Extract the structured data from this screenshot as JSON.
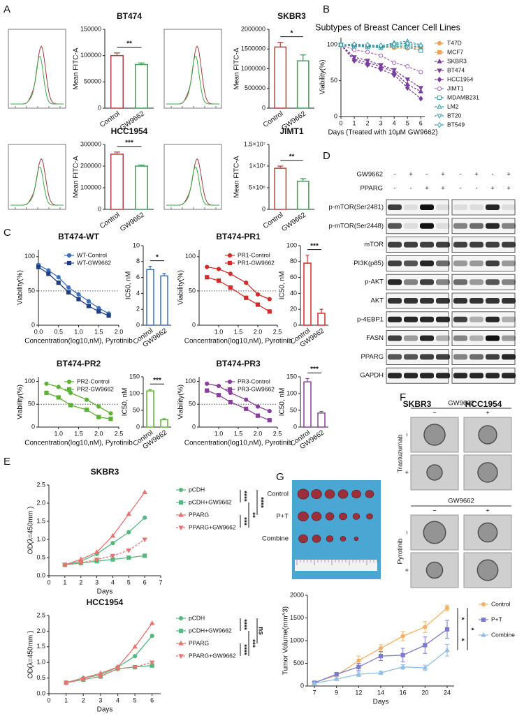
{
  "panels": [
    "A",
    "B",
    "C",
    "D",
    "E",
    "F",
    "G"
  ],
  "chart_data": [
    {
      "type": "bar",
      "title": "BT474",
      "ylabel": "Mean FITC-A",
      "categories": [
        "Control",
        "GW9662"
      ],
      "values": [
        100000,
        83000
      ],
      "errors": [
        5000,
        3000
      ],
      "colors": [
        "#b5403f",
        "#3f9e5a"
      ],
      "ylim": [
        0,
        150000
      ],
      "yticks": [
        0,
        50000,
        100000,
        150000
      ],
      "sig": "**"
    },
    {
      "type": "bar",
      "title": "SKBR3",
      "ylabel": "Mean FITC-A",
      "categories": [
        "Control",
        "GW9662"
      ],
      "values": [
        1550000,
        1200000
      ],
      "errors": [
        120000,
        150000
      ],
      "colors": [
        "#b5403f",
        "#3f9e5a"
      ],
      "ylim": [
        0,
        2000000
      ],
      "yticks": [
        0,
        500000,
        1000000,
        1500000,
        2000000
      ],
      "sig": "*"
    },
    {
      "type": "bar",
      "title": "HCC1954",
      "ylabel": "Mean FITC-A",
      "categories": [
        "Control",
        "GW9662"
      ],
      "values": [
        255000,
        200000
      ],
      "errors": [
        10000,
        5000
      ],
      "colors": [
        "#b5403f",
        "#3f9e5a"
      ],
      "ylim": [
        0,
        300000
      ],
      "yticks": [
        0,
        100000,
        200000,
        300000
      ],
      "sig": "***"
    },
    {
      "type": "bar",
      "title": "JIMT1",
      "ylabel": "Mean FITC-A",
      "categories": [
        "Control",
        "GW9662"
      ],
      "values": [
        9500000,
        6500000
      ],
      "errors": [
        500000,
        600000
      ],
      "colors": [
        "#b5403f",
        "#3f9e5a"
      ],
      "ylim": [
        0,
        15000000
      ],
      "yticks": [
        0,
        {
          "value": 5000000,
          "label": "5×10⁶"
        },
        {
          "value": 10000000,
          "label": "1×10⁷"
        },
        {
          "value": 15000000,
          "label": "1.5×10⁷"
        }
      ],
      "sig": "**"
    },
    {
      "type": "line",
      "title": "Subtypes of Breast Cancer Cell Lines",
      "xlabel": "Days (Treated with 10μM GW9662)",
      "ylabel": "Viability(%)",
      "x": [
        0,
        1,
        2,
        3,
        4,
        5,
        6
      ],
      "xlim": [
        0,
        6.3
      ],
      "xticks": [
        0,
        1,
        2,
        3,
        4,
        5,
        6
      ],
      "ylim": [
        0,
        110
      ],
      "yticks": [
        0,
        50,
        100
      ],
      "series": [
        {
          "name": "T47D",
          "color": "#f0a050",
          "marker": "circle",
          "dash": true,
          "values": [
            100,
            100,
            98,
            97,
            96,
            95,
            96
          ]
        },
        {
          "name": "MCF7",
          "color": "#f0a050",
          "marker": "square",
          "dash": true,
          "values": [
            100,
            99,
            98,
            97,
            97,
            97,
            96
          ]
        },
        {
          "name": "SKBR3",
          "color": "#7b3f9e",
          "marker": "triangle",
          "dash": true,
          "values": [
            100,
            80,
            75,
            70,
            62,
            45,
            35
          ]
        },
        {
          "name": "BT474",
          "color": "#7b3f9e",
          "marker": "triangle-down",
          "dash": true,
          "values": [
            100,
            83,
            78,
            72,
            65,
            52,
            40
          ]
        },
        {
          "name": "HCC1954",
          "color": "#7b3f9e",
          "marker": "diamond",
          "dash": true,
          "values": [
            100,
            78,
            72,
            66,
            58,
            40,
            25
          ]
        },
        {
          "name": "JIMT1",
          "color": "#a36cc0",
          "marker": "circle-open",
          "dash": true,
          "values": [
            100,
            93,
            90,
            85,
            75,
            70,
            62
          ]
        },
        {
          "name": "MDAMB231",
          "color": "#3a9aa8",
          "marker": "square-open",
          "dash": true,
          "values": [
            100,
            98,
            97,
            96,
            98,
            97,
            92
          ]
        },
        {
          "name": "LM2",
          "color": "#3a9aa8",
          "marker": "triangle-open",
          "dash": true,
          "values": [
            100,
            100,
            99,
            98,
            103,
            105,
            100
          ]
        },
        {
          "name": "BT20",
          "color": "#3a9aa8",
          "marker": "triangle-down-open",
          "dash": true,
          "values": [
            100,
            99,
            98,
            97,
            100,
            99,
            97
          ]
        },
        {
          "name": "BT549",
          "color": "#3a9aa8",
          "marker": "diamond-open",
          "dash": true,
          "values": [
            100,
            101,
            100,
            99,
            101,
            102,
            99
          ]
        }
      ]
    },
    {
      "type": "line",
      "title": "BT474-WT",
      "xlabel": "Concentration(log10,nM), Pyrotinib",
      "ylabel": "Viability(%)",
      "x": [
        0,
        0.25,
        0.5,
        0.75,
        1,
        1.25,
        1.5,
        1.75
      ],
      "xlim": [
        0,
        2
      ],
      "xticks": [
        {
          "value": 0,
          "label": "0.0"
        },
        0.5,
        {
          "value": 1,
          "label": "1.0"
        },
        1.5,
        {
          "value": 2,
          "label": "2.0"
        }
      ],
      "ylim": [
        0,
        110
      ],
      "yticks": [
        0,
        50,
        100
      ],
      "hline": 50,
      "series": [
        {
          "name": "WT-Control",
          "color": "#3a6fc0",
          "marker": "circle",
          "values": [
            88,
            80,
            70,
            55,
            45,
            35,
            25,
            17
          ]
        },
        {
          "name": "WT-GW9662",
          "color": "#1f3f80",
          "marker": "square",
          "values": [
            85,
            75,
            62,
            48,
            38,
            28,
            20,
            14
          ]
        }
      ]
    },
    {
      "type": "bar",
      "ylabel": "IC50, nM",
      "categories": [
        "Control",
        "GW9662"
      ],
      "values": [
        7,
        6.2
      ],
      "errors": [
        0.4,
        0.3
      ],
      "colors": [
        "#3a6fc0",
        "#3a6fc0"
      ],
      "ylim": [
        0,
        10
      ],
      "yticks": [
        0,
        2,
        4,
        6,
        8,
        10
      ],
      "sig": "*"
    },
    {
      "type": "line",
      "title": "BT474-PR1",
      "xlabel": "Concentration(log10,nM), Pyrotinib",
      "ylabel": "Viability(%)",
      "x": [
        0.7,
        1.0,
        1.3,
        1.7,
        2.0,
        2.3
      ],
      "xlim": [
        0.5,
        2.5
      ],
      "xticks": [
        {
          "value": 1,
          "label": "1.0"
        },
        1.5,
        {
          "value": 2,
          "label": "2.0"
        },
        2.5
      ],
      "ylim": [
        0,
        110
      ],
      "yticks": [
        0,
        50,
        100
      ],
      "hline": 50,
      "series": [
        {
          "name": "PR1-Control",
          "color": "#d42a2a",
          "marker": "circle",
          "values": [
            85,
            82,
            75,
            62,
            45,
            38
          ]
        },
        {
          "name": "PR1-GW9662",
          "color": "#d42a2a",
          "marker": "square",
          "values": [
            70,
            65,
            55,
            40,
            30,
            20
          ]
        }
      ]
    },
    {
      "type": "bar",
      "ylabel": "IC50, nM",
      "categories": [
        "Control",
        "GW9662"
      ],
      "values": [
        78,
        15
      ],
      "errors": [
        10,
        5
      ],
      "colors": [
        "#d42a2a",
        "#d42a2a"
      ],
      "ylim": [
        0,
        100
      ],
      "yticks": [
        0,
        20,
        40,
        60,
        80,
        100
      ],
      "sig": "***"
    },
    {
      "type": "line",
      "title": "BT474-PR2",
      "xlabel": "Concentration(log10,nM), Pyrotinib",
      "ylabel": "Viability(%)",
      "x": [
        0.7,
        1.0,
        1.3,
        1.7,
        2.0,
        2.3
      ],
      "xlim": [
        0.5,
        2.5
      ],
      "xticks": [
        {
          "value": 1,
          "label": "1.0"
        },
        1.5,
        {
          "value": 2,
          "label": "2.0"
        },
        2.5
      ],
      "ylim": [
        0,
        110
      ],
      "yticks": [
        0,
        50,
        100
      ],
      "hline": 50,
      "series": [
        {
          "name": "PR2-Control",
          "color": "#5db234",
          "marker": "circle",
          "values": [
            95,
            88,
            75,
            60,
            45,
            30
          ]
        },
        {
          "name": "PR2-GW9662",
          "color": "#5db234",
          "marker": "square",
          "values": [
            75,
            65,
            48,
            38,
            22,
            18
          ]
        }
      ]
    },
    {
      "type": "bar",
      "ylabel": "IC50, nM",
      "categories": [
        "Control",
        "GW9662"
      ],
      "values": [
        108,
        22
      ],
      "errors": [
        4,
        3
      ],
      "colors": [
        "#5db234",
        "#5db234"
      ],
      "ylim": [
        0,
        150
      ],
      "yticks": [
        0,
        50,
        100,
        150
      ],
      "sig": "***"
    },
    {
      "type": "line",
      "title": "BT474-PR3",
      "xlabel": "Concentration(log10,nM), Pyrotinib",
      "ylabel": "Viability(%)",
      "x": [
        0.7,
        1.0,
        1.3,
        1.7,
        2.0,
        2.3
      ],
      "xlim": [
        0.5,
        2.5
      ],
      "xticks": [
        {
          "value": 1,
          "label": "1.0"
        },
        1.5,
        {
          "value": 2,
          "label": "2.0"
        },
        2.5
      ],
      "ylim": [
        0,
        110
      ],
      "yticks": [
        0,
        50,
        100
      ],
      "hline": 50,
      "series": [
        {
          "name": "PR3-Control",
          "color": "#8a3f9e",
          "marker": "circle",
          "values": [
            95,
            90,
            75,
            60,
            45,
            35
          ]
        },
        {
          "name": "PR3-GW9662",
          "color": "#8a3f9e",
          "marker": "square",
          "values": [
            80,
            70,
            55,
            40,
            25,
            15
          ]
        }
      ]
    },
    {
      "type": "bar",
      "ylabel": "IC50, nM",
      "categories": [
        "Control",
        "GW9662"
      ],
      "values": [
        135,
        42
      ],
      "errors": [
        10,
        5
      ],
      "colors": [
        "#8a3f9e",
        "#8a3f9e"
      ],
      "ylim": [
        0,
        150
      ],
      "yticks": [
        0,
        50,
        100,
        150
      ],
      "sig": "***"
    },
    {
      "type": "line",
      "title": "SKBR3",
      "xlabel": "Days",
      "ylabel": "OD(λ=450mm )",
      "x": [
        1,
        2,
        3,
        4,
        5,
        6
      ],
      "xlim": [
        0,
        7
      ],
      "xticks": [
        0,
        1,
        2,
        3,
        4,
        5,
        6,
        7
      ],
      "ylim": [
        0,
        2.5
      ],
      "yticks": [
        {
          "value": 0,
          "label": "0.0"
        },
        0.5,
        {
          "value": 1,
          "label": "1.0"
        },
        1.5,
        {
          "value": 2,
          "label": "2.0"
        },
        2.5
      ],
      "series": [
        {
          "name": "pCDH",
          "color": "#55b87e",
          "marker": "circle",
          "values": [
            0.3,
            0.4,
            0.6,
            0.9,
            1.2,
            1.6
          ]
        },
        {
          "name": "pCDH+GW9662",
          "color": "#55b87e",
          "marker": "square",
          "values": [
            0.3,
            0.35,
            0.4,
            0.45,
            0.5,
            0.55
          ]
        },
        {
          "name": "PPARG",
          "color": "#e87470",
          "marker": "triangle",
          "values": [
            0.3,
            0.45,
            0.65,
            1.1,
            1.7,
            2.3
          ]
        },
        {
          "name": "PPARG+GW9662",
          "color": "#e87470",
          "marker": "triangle-down",
          "dash": true,
          "values": [
            0.3,
            0.35,
            0.45,
            0.55,
            0.7,
            1.0
          ]
        }
      ],
      "sig": [
        "****",
        "***",
        "**",
        "****"
      ]
    },
    {
      "type": "line",
      "title": "HCC1954",
      "xlabel": "Days",
      "ylabel": "OD(λ=450mm )",
      "x": [
        1,
        2,
        3,
        4,
        5,
        6
      ],
      "xlim": [
        0,
        6.5
      ],
      "xticks": [
        0,
        1,
        2,
        3,
        4,
        5,
        6
      ],
      "ylim": [
        0,
        2.5
      ],
      "yticks": [
        {
          "value": 0,
          "label": "0.0"
        },
        0.5,
        {
          "value": 1,
          "label": "1.0"
        },
        1.5,
        {
          "value": 2,
          "label": "2.0"
        },
        2.5
      ],
      "series": [
        {
          "name": "pCDH",
          "color": "#55b87e",
          "marker": "circle",
          "values": [
            0.35,
            0.5,
            0.6,
            0.85,
            1.2,
            1.85
          ]
        },
        {
          "name": "pCDH+GW9662",
          "color": "#55b87e",
          "marker": "square",
          "values": [
            0.35,
            0.45,
            0.55,
            0.8,
            0.85,
            0.9
          ]
        },
        {
          "name": "PPARG",
          "color": "#e87470",
          "marker": "triangle",
          "values": [
            0.35,
            0.5,
            0.65,
            0.85,
            1.5,
            2.25
          ]
        },
        {
          "name": "PPARG+GW9662",
          "color": "#e87470",
          "marker": "triangle-down",
          "dash": true,
          "values": [
            0.35,
            0.45,
            0.55,
            0.8,
            0.85,
            1.0
          ]
        }
      ],
      "sig": [
        "****",
        "****",
        "***",
        "ns"
      ]
    },
    {
      "type": "line",
      "xlabel": "Days",
      "ylabel": "Tumor Volume(mm^3)",
      "categories": [
        "7",
        "9",
        "12",
        "14",
        "16",
        "20",
        "24"
      ],
      "ylim": [
        0,
        2000
      ],
      "yticks": [
        0,
        500,
        1000,
        1500,
        2000
      ],
      "series": [
        {
          "name": "Control",
          "color": "#f5b264",
          "marker": "circle",
          "values": [
            80,
            230,
            560,
            830,
            1100,
            1300,
            1720
          ],
          "errors": [
            10,
            20,
            100,
            80,
            100,
            120,
            60
          ]
        },
        {
          "name": "P+T",
          "color": "#7b7bd0",
          "marker": "square",
          "values": [
            70,
            260,
            420,
            660,
            680,
            900,
            1250
          ],
          "errors": [
            10,
            20,
            80,
            100,
            150,
            180,
            200
          ]
        },
        {
          "name": "Combine",
          "color": "#8fbde6",
          "marker": "triangle",
          "values": [
            60,
            150,
            260,
            290,
            420,
            400,
            790
          ],
          "errors": [
            10,
            20,
            50,
            30,
            50,
            60,
            130
          ]
        }
      ],
      "sig": [
        "*",
        "*",
        "*"
      ]
    }
  ],
  "blot": {
    "treatments": [
      {
        "name": "GW9662",
        "signs": [
          "-",
          "+",
          "-",
          "+",
          "-",
          "+",
          "-",
          "+"
        ]
      },
      {
        "name": "PPARG",
        "signs": [
          "-",
          "-",
          "+",
          "+",
          "-",
          "-",
          "+",
          "+"
        ]
      }
    ],
    "proteins": [
      "p-mTOR(Ser2481)",
      "p-mTOR(Ser2448)",
      "mTOR",
      "PI3K(p85)",
      "p-AKT",
      "AKT",
      "p-4EBP1",
      "FASN",
      "PPARG",
      "GAPDH"
    ],
    "cell_lines": [
      "SKBR3",
      "HCC1954"
    ]
  },
  "organoids": [
    {
      "treatment": "GW9662",
      "columns": [
        "−",
        "+"
      ],
      "drug": "Trastuzumab",
      "rows": [
        "−",
        "+"
      ]
    },
    {
      "treatment": "GW9662",
      "columns": [
        "−",
        "+"
      ],
      "drug": "Pyrotinib",
      "rows": [
        "−",
        "+"
      ]
    }
  ],
  "xenograft_photo": {
    "groups": [
      "Control",
      "P+T",
      "Combine"
    ]
  }
}
